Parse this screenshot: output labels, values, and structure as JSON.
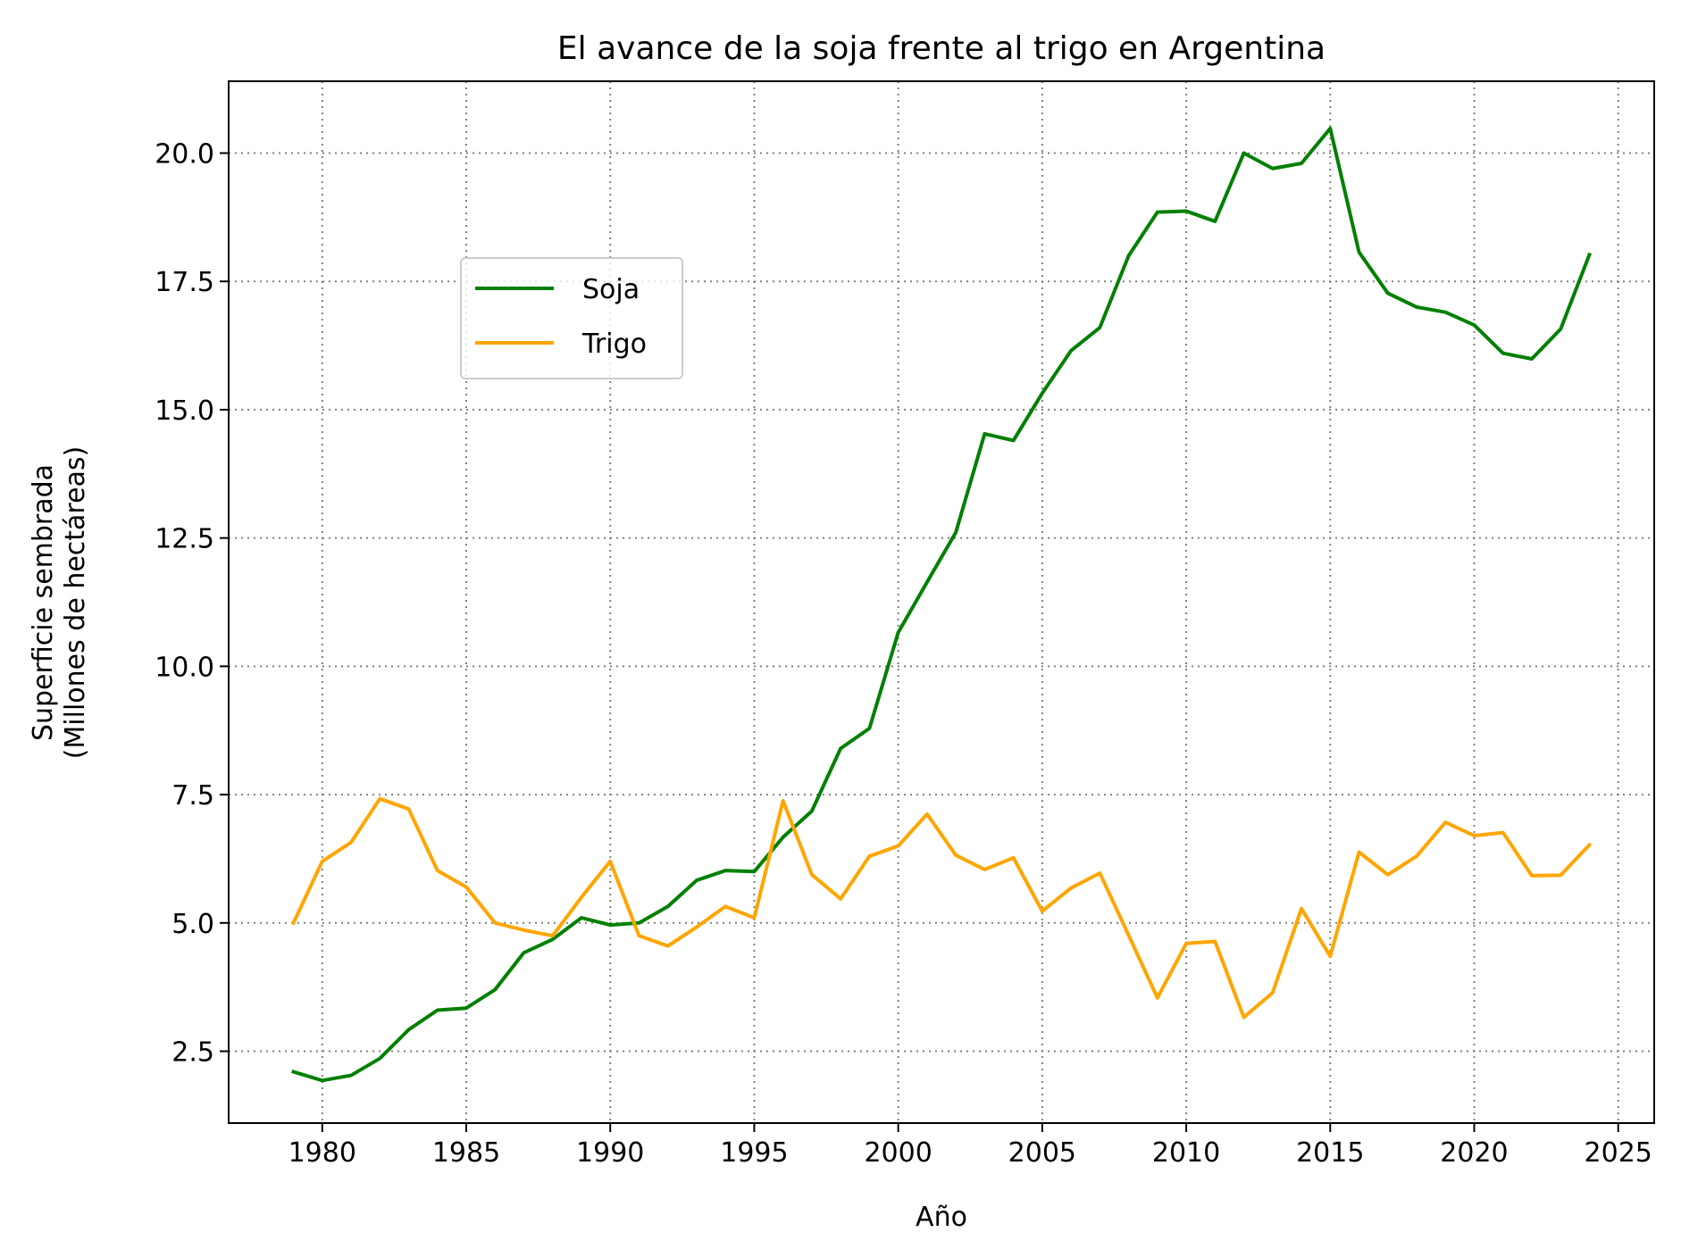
{
  "chart_data": {
    "type": "line",
    "title": "El avance de la soja frente al trigo en Argentina",
    "xlabel": "Año",
    "ylabel": [
      "Superficie sembrada",
      "(Millones de hectáreas)"
    ],
    "xlim": [
      1976.75,
      2026.25
    ],
    "ylim": [
      1.1,
      21.4
    ],
    "xticks": [
      1980,
      1985,
      1990,
      1995,
      2000,
      2005,
      2010,
      2015,
      2020,
      2025
    ],
    "yticks": [
      2.5,
      5.0,
      7.5,
      10.0,
      12.5,
      15.0,
      17.5,
      20.0
    ],
    "ytick_labels": [
      "2.5",
      "5.0",
      "7.5",
      "10.0",
      "12.5",
      "15.0",
      "17.5",
      "20.0"
    ],
    "grid": true,
    "legend_position": "upper-left",
    "x": [
      1979,
      1980,
      1981,
      1982,
      1983,
      1984,
      1985,
      1986,
      1987,
      1988,
      1989,
      1990,
      1991,
      1992,
      1993,
      1994,
      1995,
      1996,
      1997,
      1998,
      1999,
      2000,
      2001,
      2002,
      2003,
      2004,
      2005,
      2006,
      2007,
      2008,
      2009,
      2010,
      2011,
      2012,
      2013,
      2014,
      2015,
      2016,
      2017,
      2018,
      2019,
      2020,
      2021,
      2022,
      2023,
      2024
    ],
    "series": [
      {
        "name": "Soja",
        "color": "#008000",
        "values": [
          2.1,
          1.93,
          2.03,
          2.36,
          2.92,
          3.3,
          3.34,
          3.7,
          4.42,
          4.68,
          5.1,
          4.96,
          5.0,
          5.32,
          5.83,
          6.02,
          6.0,
          6.67,
          7.18,
          8.4,
          8.79,
          10.66,
          11.64,
          12.61,
          14.53,
          14.4,
          15.32,
          16.15,
          16.6,
          18.0,
          18.85,
          18.87,
          18.67,
          20.0,
          19.7,
          19.8,
          20.48,
          18.07,
          17.27,
          17.0,
          16.9,
          16.65,
          16.1,
          15.99,
          16.57,
          18.02
        ]
      },
      {
        "name": "Trigo",
        "color": "#ffa500",
        "values": [
          5.0,
          6.2,
          6.57,
          7.42,
          7.22,
          6.02,
          5.7,
          5.0,
          4.86,
          4.75,
          5.5,
          6.2,
          4.75,
          4.55,
          4.92,
          5.32,
          5.1,
          7.38,
          5.94,
          5.47,
          6.3,
          6.5,
          7.12,
          6.32,
          6.04,
          6.27,
          5.23,
          5.68,
          5.97,
          4.76,
          3.54,
          4.6,
          4.64,
          3.16,
          3.64,
          5.28,
          4.35,
          6.38,
          5.94,
          6.3,
          6.96,
          6.7,
          6.76,
          5.92,
          5.93,
          6.52
        ]
      }
    ]
  }
}
